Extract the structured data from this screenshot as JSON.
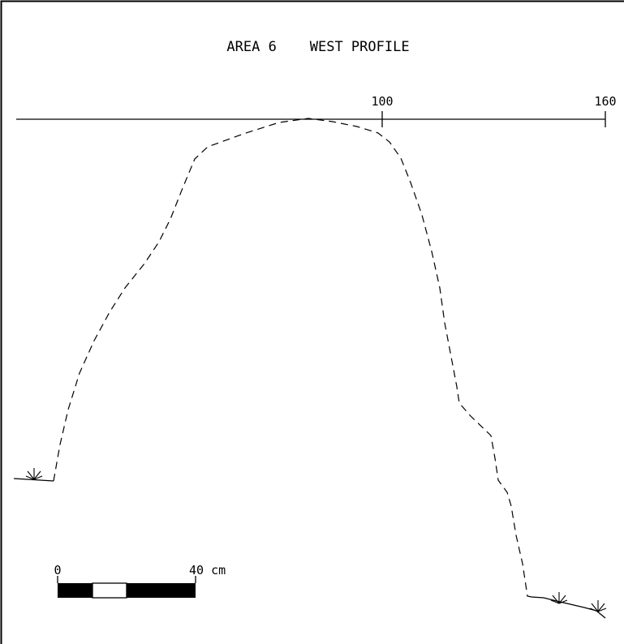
{
  "title": "AREA 6    WEST PROFILE",
  "datum_ticks": [
    "100",
    "160"
  ],
  "scale_bar": {
    "start_label": "0",
    "end_label": "40 cm",
    "segments": [
      "black",
      "white",
      "black",
      "black"
    ]
  },
  "colors": {
    "ink": "#000000",
    "paper": "#ffffff"
  },
  "icons": [
    "grass-tuft-icon",
    "grass-tuft-icon",
    "grass-tuft-icon"
  ]
}
